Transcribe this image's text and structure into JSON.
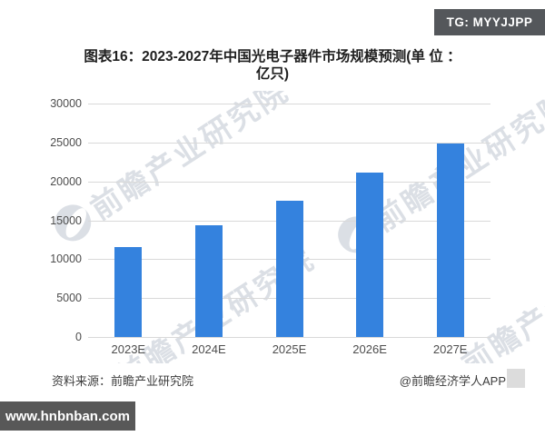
{
  "badge": {
    "text": "TG: MYYJJPP"
  },
  "chart": {
    "title_line1": "图表16：2023-2027年中国光电子器件市场规模预测(单 位 ：",
    "title_line2": "亿只)"
  },
  "chart_data": {
    "type": "bar",
    "title": "图表16：2023-2027年中国光电子器件市场规模预测(单位：亿只)",
    "categories": [
      "2023E",
      "2024E",
      "2025E",
      "2026E",
      "2027E"
    ],
    "values": [
      11600,
      14400,
      17500,
      21100,
      24900
    ],
    "xlabel": "",
    "ylabel": "",
    "ylim": [
      0,
      30000
    ],
    "yticks": [
      0,
      5000,
      10000,
      15000,
      20000,
      25000,
      30000
    ],
    "grid": true,
    "legend": false,
    "bar_color": "#3482de",
    "gridline_color": "#d9d9d9"
  },
  "watermark": {
    "text": "前瞻产业研究院"
  },
  "footer": {
    "source": "资料来源：前瞻产业研究院",
    "credit": "@前瞻经济学人APP"
  },
  "site_watermark": {
    "text": "www.hnbnban.com"
  }
}
